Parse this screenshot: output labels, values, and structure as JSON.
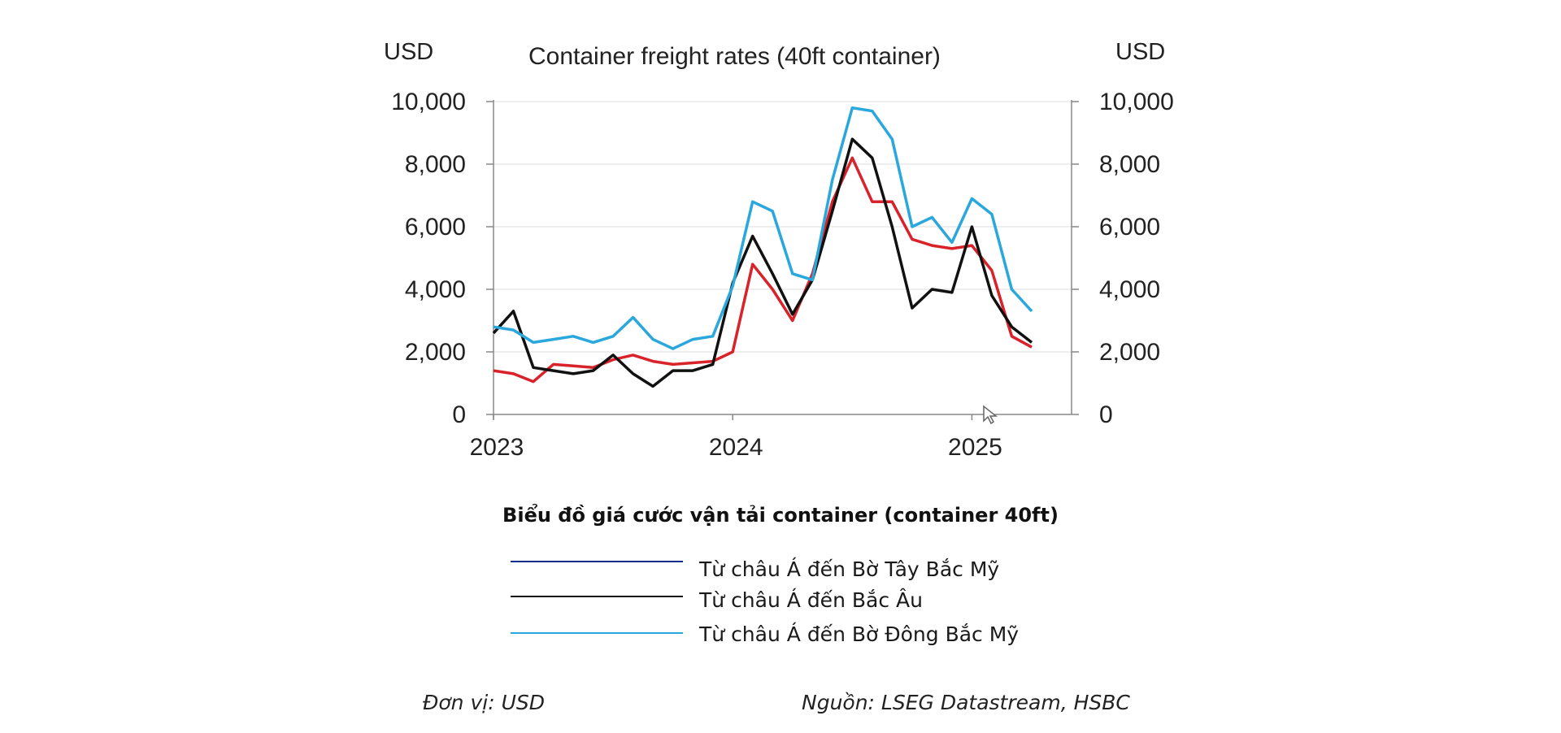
{
  "chart_data": {
    "type": "line",
    "title": "Container freight rates (40ft container)",
    "ylabel_left": "USD",
    "ylabel_right": "USD",
    "ylim": [
      0,
      10000
    ],
    "xlim": [
      "2023-01",
      "2025-06"
    ],
    "y_ticks": [
      "0",
      "2,000",
      "4,000",
      "6,000",
      "8,000",
      "10,000"
    ],
    "x_ticks": [
      {
        "label": "2023",
        "date": "2023-01"
      },
      {
        "label": "2024",
        "date": "2024-01"
      },
      {
        "label": "2025",
        "date": "2025-01"
      }
    ],
    "grid": "horizontal",
    "series": [
      {
        "color": "#d8232a",
        "x": [
          "2023-01",
          "2023-02",
          "2023-03",
          "2023-04",
          "2023-05",
          "2023-06",
          "2023-07",
          "2023-08",
          "2023-09",
          "2023-10",
          "2023-11",
          "2023-12",
          "2024-01",
          "2024-02",
          "2024-03",
          "2024-04",
          "2024-05",
          "2024-06",
          "2024-07",
          "2024-08",
          "2024-09",
          "2024-10",
          "2024-11",
          "2024-12",
          "2025-01",
          "2025-02",
          "2025-03",
          "2025-04"
        ],
        "y": [
          1400,
          1300,
          1050,
          1600,
          1550,
          1500,
          1750,
          1900,
          1700,
          1600,
          1650,
          1700,
          2000,
          4800,
          4000,
          3000,
          4500,
          6800,
          8200,
          6800,
          6800,
          5600,
          5400,
          5300,
          5400,
          4600,
          2500,
          2150
        ]
      },
      {
        "color": "#111111",
        "x": [
          "2023-01",
          "2023-02",
          "2023-03",
          "2023-04",
          "2023-05",
          "2023-06",
          "2023-07",
          "2023-08",
          "2023-09",
          "2023-10",
          "2023-11",
          "2023-12",
          "2024-01",
          "2024-02",
          "2024-03",
          "2024-04",
          "2024-05",
          "2024-06",
          "2024-07",
          "2024-08",
          "2024-09",
          "2024-10",
          "2024-11",
          "2024-12",
          "2025-01",
          "2025-02",
          "2025-03",
          "2025-04"
        ],
        "y": [
          2600,
          3300,
          1500,
          1400,
          1300,
          1400,
          1900,
          1300,
          900,
          1400,
          1400,
          1600,
          4200,
          5700,
          4500,
          3200,
          4300,
          6500,
          8800,
          8200,
          6000,
          3400,
          4000,
          3900,
          6000,
          3800,
          2800,
          2300
        ]
      },
      {
        "color": "#2aa7dd",
        "x": [
          "2023-01",
          "2023-02",
          "2023-03",
          "2023-04",
          "2023-05",
          "2023-06",
          "2023-07",
          "2023-08",
          "2023-09",
          "2023-10",
          "2023-11",
          "2023-12",
          "2024-01",
          "2024-02",
          "2024-03",
          "2024-04",
          "2024-05",
          "2024-06",
          "2024-07",
          "2024-08",
          "2024-09",
          "2024-10",
          "2024-11",
          "2024-12",
          "2025-01",
          "2025-02",
          "2025-03",
          "2025-04"
        ],
        "y": [
          2800,
          2700,
          2300,
          2400,
          2500,
          2300,
          2500,
          3100,
          2400,
          2100,
          2400,
          2500,
          4100,
          6800,
          6500,
          4500,
          4300,
          7500,
          9800,
          9700,
          8800,
          6000,
          6300,
          5500,
          6900,
          6400,
          4000,
          3300
        ]
      }
    ]
  },
  "caption": "Biểu đồ giá cước vận tải container (container 40ft)",
  "legend": [
    {
      "label": "Từ châu Á đến Bờ Tây Bắc Mỹ",
      "color": "#0b2e8a"
    },
    {
      "label": "Từ châu Á đến Bắc Âu",
      "color": "#111111"
    },
    {
      "label": "Từ châu Á đến Bờ Đông Bắc Mỹ",
      "color": "#2aa7dd"
    }
  ],
  "footnotes": {
    "unit": "Đơn vị: USD",
    "source": "Nguồn: LSEG Datastream, HSBC"
  }
}
